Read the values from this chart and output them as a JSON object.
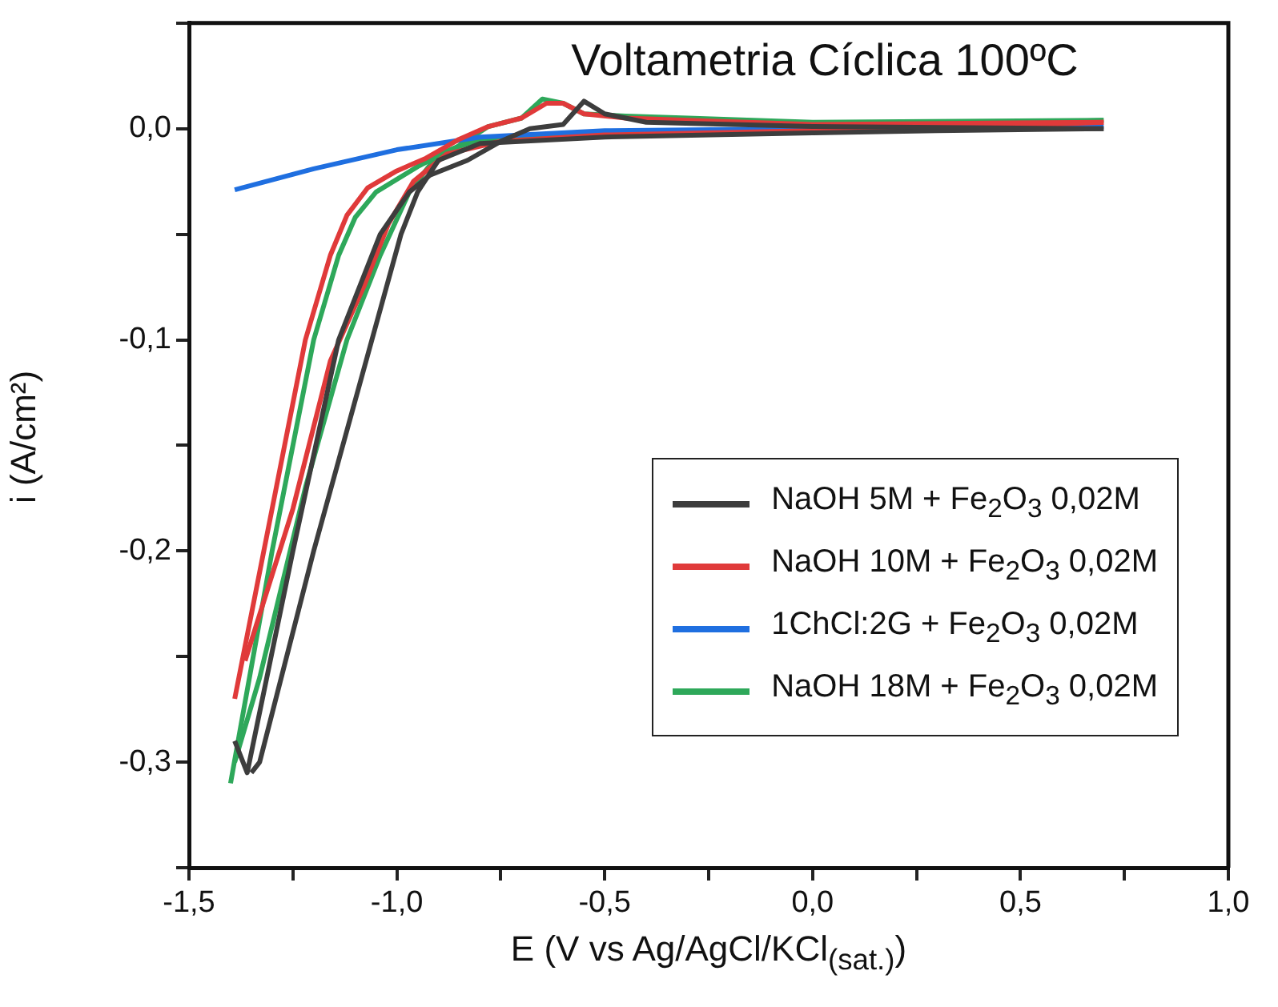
{
  "chart_data": {
    "type": "line",
    "title": "Voltametria Cíclica 100ºC",
    "xlabel": "E (V vs Ag/AgCl/KCl$_{(sat.)}$)",
    "ylabel": "i (A/cm²)",
    "xlim": [
      -1.5,
      1.0
    ],
    "ylim": [
      -0.35,
      0.05
    ],
    "xticks": [
      {
        "value": -1.5,
        "label": "-1,5"
      },
      {
        "value": -1.25,
        "label": null
      },
      {
        "value": -1.0,
        "label": "-1,0"
      },
      {
        "value": -0.75,
        "label": null
      },
      {
        "value": -0.5,
        "label": "-0,5"
      },
      {
        "value": -0.25,
        "label": null
      },
      {
        "value": 0,
        "label": "0,0"
      },
      {
        "value": 0.25,
        "label": null
      },
      {
        "value": 0.5,
        "label": "0,5"
      },
      {
        "value": 0.75,
        "label": null
      },
      {
        "value": 1.0,
        "label": "1,0"
      }
    ],
    "yticks": [
      {
        "value": -0.35,
        "label": null
      },
      {
        "value": -0.3,
        "label": "-0,3"
      },
      {
        "value": -0.25,
        "label": null
      },
      {
        "value": -0.2,
        "label": "-0,2"
      },
      {
        "value": -0.15,
        "label": null
      },
      {
        "value": -0.1,
        "label": "-0,1"
      },
      {
        "value": -0.05,
        "label": null
      },
      {
        "value": 0,
        "label": "0,0"
      },
      {
        "value": 0.05,
        "label": null
      }
    ],
    "grid": false,
    "legend": "bottom right",
    "marker": "none",
    "line_style": "solid",
    "series": [
      {
        "name": "NaOH 5M + Fe$_{2}$O$_{3}$ 0,02M",
        "color": "#3d3d3d",
        "x": [
          -1.39,
          -1.37,
          -1.36,
          -1.25,
          -1.14,
          -1.04,
          -0.97,
          -0.92,
          -0.83,
          -0.75,
          -0.68,
          -0.6,
          -0.55,
          -0.5,
          -0.4,
          0,
          0.7
        ],
        "values": [
          -0.29,
          -0.3,
          -0.305,
          -0.2,
          -0.1,
          -0.05,
          -0.03,
          -0.022,
          -0.015,
          -0.006,
          0.0,
          0.002,
          0.013,
          0.007,
          0.003,
          0.001,
          0.0
        ]
      },
      {
        "color": "#3d3d3d",
        "x": [
          0.7,
          0.3,
          0,
          -0.5,
          -0.8,
          -0.9,
          -0.95,
          -0.99,
          -1.06,
          -1.2,
          -1.33,
          -1.35
        ],
        "values": [
          0.0,
          -0.001,
          -0.002,
          -0.004,
          -0.007,
          -0.015,
          -0.03,
          -0.05,
          -0.1,
          -0.2,
          -0.3,
          -0.305
        ]
      },
      {
        "name": "NaOH 10M + Fe$_{2}$O$_{3}$ 0,02M",
        "color": "#e03a3a",
        "x": [
          -1.39,
          -1.3,
          -1.22,
          -1.16,
          -1.12,
          -1.07,
          -1.0,
          -0.93,
          -0.85,
          -0.78,
          -0.7,
          -0.64,
          -0.6,
          -0.55,
          -0.45,
          -0.3,
          0,
          0.7
        ],
        "values": [
          -0.27,
          -0.18,
          -0.1,
          -0.06,
          -0.041,
          -0.028,
          -0.02,
          -0.014,
          -0.005,
          0.001,
          0.005,
          0.012,
          0.012,
          0.007,
          0.005,
          0.004,
          0.002,
          0.003
        ]
      },
      {
        "color": "#e03a3a",
        "x": [
          0.7,
          0.3,
          0,
          -0.5,
          -0.75,
          -0.88,
          -0.96,
          -1.02,
          -1.08,
          -1.16,
          -1.25,
          -1.365
        ],
        "values": [
          0.003,
          0.0,
          -0.001,
          -0.003,
          -0.006,
          -0.012,
          -0.025,
          -0.045,
          -0.075,
          -0.11,
          -0.18,
          -0.252
        ]
      },
      {
        "name": "1ChCl:2G + Fe$_{2}$O$_{3}$ 0,02M",
        "color": "#1f6fe0",
        "x": [
          -1.39,
          -1.2,
          -1.0,
          -0.8,
          -0.5,
          0,
          0.7
        ],
        "values": [
          -0.029,
          -0.019,
          -0.01,
          -0.004,
          -0.001,
          0.0,
          0.001
        ]
      },
      {
        "name": "NaOH 18M + Fe$_{2}$O$_{3}$ 0,02M",
        "color": "#2ea85a",
        "x": [
          -1.4,
          -1.3,
          -1.2,
          -1.14,
          -1.1,
          -1.05,
          -0.95,
          -0.85,
          -0.78,
          -0.7,
          -0.65,
          -0.6,
          -0.55,
          -0.45,
          -0.3,
          0,
          0.7
        ],
        "values": [
          -0.31,
          -0.2,
          -0.1,
          -0.06,
          -0.042,
          -0.03,
          -0.018,
          -0.008,
          0.001,
          0.005,
          0.014,
          0.012,
          0.007,
          0.006,
          0.005,
          0.003,
          0.004
        ]
      },
      {
        "color": "#2ea85a",
        "x": [
          0.7,
          0.3,
          0,
          -0.5,
          -0.8,
          -0.9,
          -0.97,
          -1.04,
          -1.12,
          -1.22,
          -1.33,
          -1.39
        ],
        "values": [
          0.004,
          0.001,
          0.0,
          -0.002,
          -0.005,
          -0.012,
          -0.03,
          -0.06,
          -0.1,
          -0.17,
          -0.26,
          -0.3
        ]
      }
    ]
  }
}
